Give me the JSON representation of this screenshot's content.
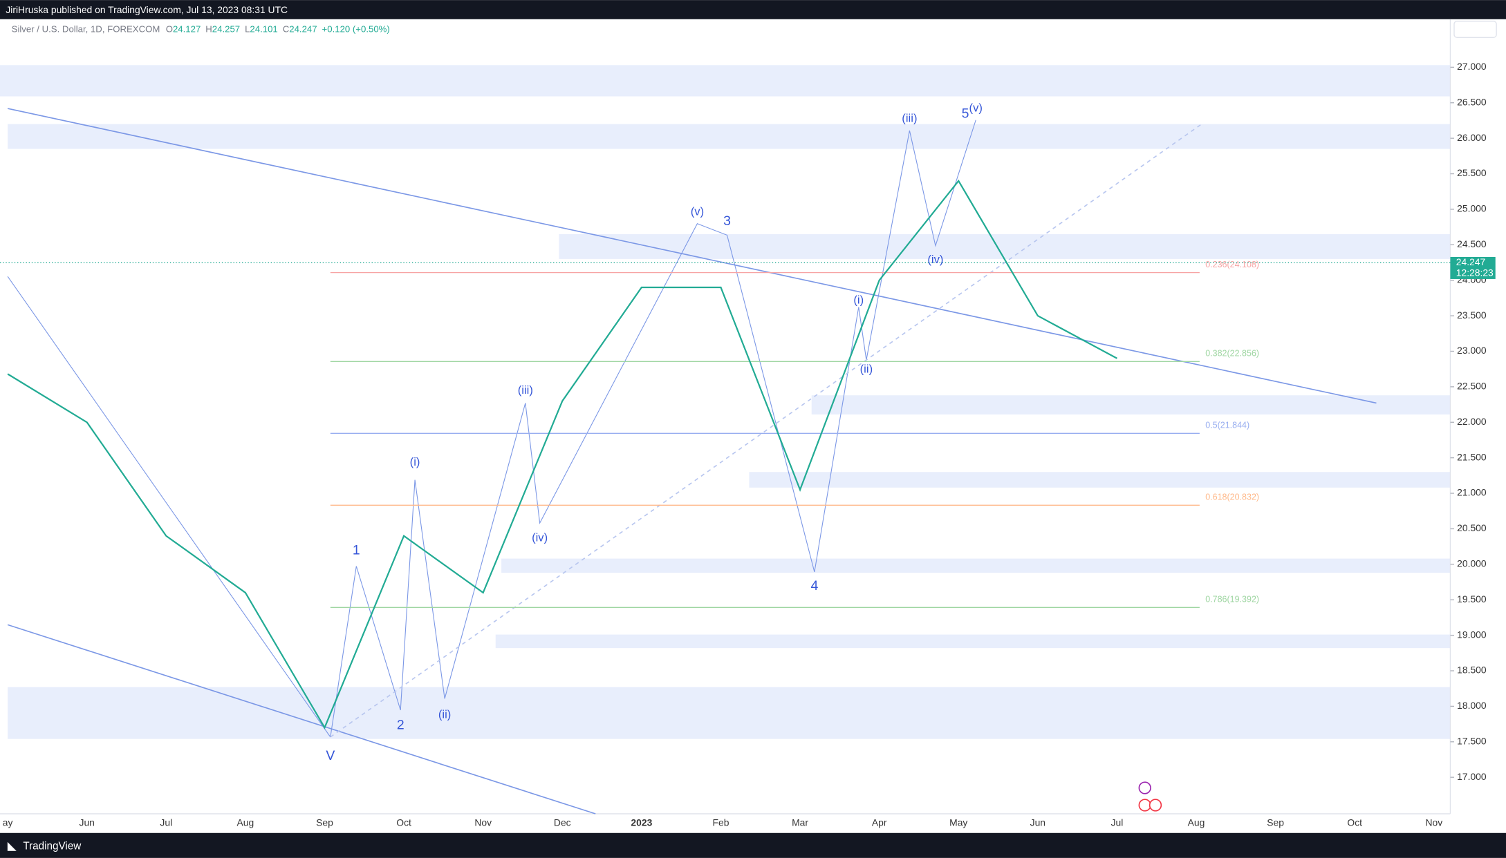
{
  "header": "JiriHruska published on TradingView.com, Jul 13, 2023 08:31 UTC",
  "footer": "TradingView",
  "chart_data": {
    "type": "line",
    "symbol": "Silver / U.S. Dollar, 1D, FOREXCOM",
    "ohlc": [
      {
        "key": "O",
        "value": 24.127
      },
      {
        "key": "H",
        "value": 24.257
      },
      {
        "key": "L",
        "value": 24.101
      },
      {
        "key": "C",
        "value": 24.247
      }
    ],
    "change": "+0.120 (+0.50%)",
    "categories": [
      "ay",
      "Jun",
      "Jul",
      "Aug",
      "Sep",
      "Oct",
      "Nov",
      "Dec",
      "2023",
      "Feb",
      "Mar",
      "Apr",
      "May",
      "Jun",
      "Jul",
      "Aug",
      "Sep",
      "Oct",
      "Nov"
    ],
    "series": [
      {
        "name": "Silver",
        "color": "#22ab94",
        "values": [
          22.68,
          22.0,
          20.4,
          19.6,
          17.7,
          20.4,
          19.6,
          22.3,
          23.9,
          23.9,
          21.05,
          24.0,
          25.4,
          23.5,
          22.9,
          null,
          null,
          null,
          null
        ]
      }
    ],
    "last_price": 24.247,
    "countdown": "12:28:23",
    "ylim": [
      16.486,
      27.676
    ],
    "yticks": [
      {
        "value": 17,
        "label": "17.000"
      },
      {
        "value": 17.5,
        "label": "17.500"
      },
      {
        "value": 18,
        "label": "18.000"
      },
      {
        "value": 18.5,
        "label": "18.500"
      },
      {
        "value": 19,
        "label": "19.000"
      },
      {
        "value": 19.5,
        "label": "19.500"
      },
      {
        "value": 20,
        "label": "20.000"
      },
      {
        "value": 20.5,
        "label": "20.500"
      },
      {
        "value": 21,
        "label": "21.000"
      },
      {
        "value": 21.5,
        "label": "21.500"
      },
      {
        "value": 22,
        "label": "22.000"
      },
      {
        "value": 22.5,
        "label": "22.500"
      },
      {
        "value": 23,
        "label": "23.000"
      },
      {
        "value": 23.5,
        "label": "23.500"
      },
      {
        "value": 24,
        "label": "24.000"
      },
      {
        "value": 24.5,
        "label": "24.500"
      },
      {
        "value": 25,
        "label": "25.000"
      },
      {
        "value": 25.5,
        "label": "25.500"
      },
      {
        "value": 26,
        "label": "26.000"
      },
      {
        "value": 26.5,
        "label": "26.500"
      },
      {
        "value": 27,
        "label": "27.000"
      }
    ],
    "fib_levels": [
      {
        "value": 24.108,
        "label": "0.236(24.108)",
        "color": "#f7a3a3"
      },
      {
        "value": 22.856,
        "label": "0.382(22.856)",
        "color": "#9fd6a2"
      },
      {
        "value": 21.844,
        "label": "0.5(21.844)",
        "color": "#98aef0"
      },
      {
        "value": 20.832,
        "label": "0.618(20.832)",
        "color": "#ffb98a"
      },
      {
        "value": 19.392,
        "label": "0.786(19.392)",
        "color": "#9fd6a2"
      }
    ],
    "zones": [
      [
        26.59,
        27.03
      ],
      [
        25.85,
        26.2
      ],
      [
        24.3,
        24.65
      ],
      [
        22.11,
        22.38
      ],
      [
        21.08,
        21.3
      ],
      [
        19.88,
        20.08
      ],
      [
        18.82,
        19.01
      ],
      [
        17.54,
        18.27
      ]
    ],
    "waves": [
      "V",
      "1",
      "2",
      "(i)",
      "(ii)",
      "(iii)",
      "(iv)",
      "(v)",
      "3",
      "4",
      "(i)",
      "(ii)",
      "(iii)",
      "(iv)",
      "5",
      "(v)"
    ]
  }
}
